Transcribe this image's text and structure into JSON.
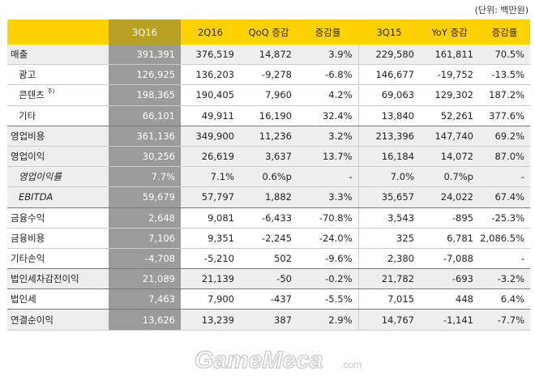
{
  "unit_note": "(단위: 백만원)",
  "headers": [
    "",
    "3Q16",
    "2Q16",
    "QoQ 증감",
    "증감률",
    "3Q15",
    "YoY 증감",
    "증감률"
  ],
  "rows": [
    {
      "label": "매출",
      "values": [
        "391,391",
        "376,519",
        "14,872",
        "3.9%",
        "229,580",
        "161,811",
        "70.5%"
      ]
    },
    {
      "label": "광고",
      "values": [
        "126,925",
        "136,203",
        "-9,278",
        "-6.8%",
        "146,677",
        "-19,752",
        "-13.5%"
      ]
    },
    {
      "label": "콘텐츠",
      "footnote": "주)",
      "values": [
        "198,365",
        "190,405",
        "7,960",
        "4.2%",
        "69,063",
        "129,302",
        "187.2%"
      ]
    },
    {
      "label": "기타",
      "values": [
        "66,101",
        "49,911",
        "16,190",
        "32.4%",
        "13,840",
        "52,261",
        "377.6%"
      ]
    },
    {
      "label": "영업비용",
      "values": [
        "361,136",
        "349,900",
        "11,236",
        "3.2%",
        "213,396",
        "147,740",
        "69.2%"
      ]
    },
    {
      "label": "영업이익",
      "values": [
        "30,256",
        "26,619",
        "3,637",
        "13.7%",
        "16,184",
        "14,072",
        "87.0%"
      ]
    },
    {
      "label": "영업이익률",
      "values": [
        "7.7%",
        "7.1%",
        "0.6%p",
        "-",
        "7.0%",
        "0.7%p",
        "-"
      ]
    },
    {
      "label": "EBITDA",
      "values": [
        "59,679",
        "57,797",
        "1,882",
        "3.3%",
        "35,657",
        "24,022",
        "67.4%"
      ]
    },
    {
      "label": "금융수익",
      "values": [
        "2,648",
        "9,081",
        "-6,433",
        "-70.8%",
        "3,543",
        "-895",
        "-25.3%"
      ]
    },
    {
      "label": "금융비용",
      "values": [
        "7,106",
        "9,351",
        "-2,245",
        "-24.0%",
        "325",
        "6,781",
        "2,086.5%"
      ]
    },
    {
      "label": "기타손익",
      "values": [
        "-4,708",
        "-5,210",
        "502",
        "-9.6%",
        "2,380",
        "-7,088",
        "-"
      ]
    },
    {
      "label": "법인세차감전이익",
      "values": [
        "21,089",
        "21,139",
        "-50",
        "-0.2%",
        "21,782",
        "-693",
        "-3.2%"
      ]
    },
    {
      "label": "법인세",
      "values": [
        "7,463",
        "7,900",
        "-437",
        "-5.5%",
        "7,015",
        "448",
        "6.4%"
      ]
    },
    {
      "label": "연결순이익",
      "values": [
        "13,626",
        "13,239",
        "387",
        "2.9%",
        "14,767",
        "-1,141",
        "-7.7%"
      ]
    }
  ],
  "watermark": "GameMeca",
  "watermark_suffix": ".com",
  "colors": {
    "header": "#ffd200",
    "highlight_column": "#9b9b9b",
    "row_shade": "#eeeeee"
  }
}
